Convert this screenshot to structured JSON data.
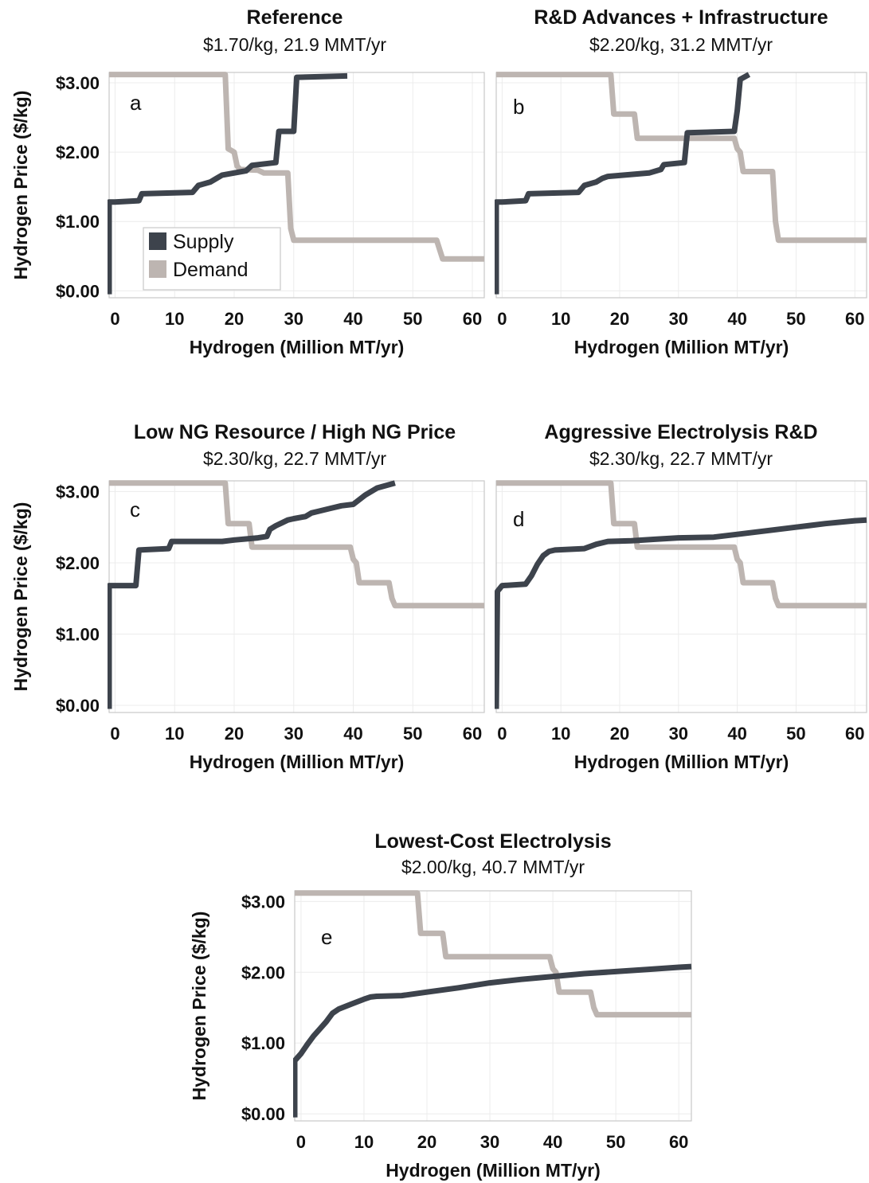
{
  "colors": {
    "supply": "#3d434c",
    "demand": "#bdb5b1",
    "grid": "#ececec",
    "frame": "#c9c9c9"
  },
  "legend": {
    "supply_label": "Supply",
    "demand_label": "Demand"
  },
  "chart_data": [
    {
      "type": "line",
      "panel": "a",
      "title": "Reference",
      "subtitle": "$1.70/kg,  21.9 MMT/yr",
      "xlabel": "Hydrogen (Million MT/yr)",
      "ylabel": "Hydrogen Price ($/kg)",
      "xlim": [
        -1,
        62
      ],
      "ylim": [
        -0.1,
        3.15
      ],
      "xticks": [
        0,
        10,
        20,
        30,
        40,
        50,
        60
      ],
      "xtick_labels": [
        "0",
        "10",
        "20",
        "30",
        "40",
        "50",
        "60"
      ],
      "yticks": [
        0,
        1,
        2,
        3
      ],
      "ytick_labels": [
        "$0.00",
        "$1.00",
        "$2.00",
        "$3.00"
      ],
      "grid": true,
      "legend": "bottom-left",
      "series": [
        {
          "name": "Supply",
          "role": "supply",
          "x": [
            -1,
            -1,
            0,
            4,
            4.5,
            13,
            14,
            16,
            17,
            18,
            22,
            23,
            27,
            27.5,
            30,
            30.5,
            39
          ],
          "y": [
            -0.05,
            1.28,
            1.28,
            1.3,
            1.4,
            1.42,
            1.52,
            1.57,
            1.62,
            1.67,
            1.73,
            1.81,
            1.85,
            2.3,
            2.3,
            3.08,
            3.1
          ]
        },
        {
          "name": "Demand",
          "role": "demand",
          "x": [
            -1,
            18.5,
            19,
            20,
            20.5,
            21,
            24,
            25,
            29,
            29.5,
            30,
            54,
            55,
            62
          ],
          "y": [
            3.12,
            3.12,
            2.05,
            2.0,
            1.8,
            1.75,
            1.74,
            1.7,
            1.7,
            0.9,
            0.73,
            0.73,
            0.46,
            0.46
          ]
        }
      ]
    },
    {
      "type": "line",
      "panel": "b",
      "title": "R&D Advances + Infrastructure",
      "subtitle": "$2.20/kg,  31.2 MMT/yr",
      "xlabel": "Hydrogen (Million MT/yr)",
      "ylabel": "",
      "xlim": [
        -1,
        62
      ],
      "ylim": [
        -0.1,
        3.15
      ],
      "xticks": [
        0,
        10,
        20,
        30,
        40,
        50,
        60
      ],
      "xtick_labels": [
        "0",
        "10",
        "20",
        "30",
        "40",
        "50",
        "60"
      ],
      "yticks": [
        0,
        1,
        2,
        3
      ],
      "ytick_labels": [],
      "grid": true,
      "series": [
        {
          "name": "Supply",
          "role": "supply",
          "x": [
            -1,
            -1,
            0,
            4,
            4.5,
            13,
            14,
            16,
            17,
            18,
            25,
            27,
            27.5,
            31,
            31.5,
            39.5,
            40,
            40.5,
            42
          ],
          "y": [
            -0.05,
            1.28,
            1.28,
            1.3,
            1.4,
            1.42,
            1.52,
            1.57,
            1.62,
            1.65,
            1.7,
            1.75,
            1.82,
            1.85,
            2.28,
            2.3,
            2.6,
            3.05,
            3.12
          ]
        },
        {
          "name": "Demand",
          "role": "demand",
          "x": [
            -1,
            18.5,
            19,
            22.5,
            23,
            39.5,
            40,
            40.5,
            41,
            46,
            46.5,
            47,
            62
          ],
          "y": [
            3.12,
            3.12,
            2.55,
            2.55,
            2.2,
            2.2,
            2.05,
            2.0,
            1.72,
            1.72,
            1.0,
            0.73,
            0.73
          ]
        }
      ]
    },
    {
      "type": "line",
      "panel": "c",
      "title": "Low NG Resource / High NG Price",
      "subtitle": "$2.30/kg,  22.7 MMT/yr",
      "xlabel": "Hydrogen (Million MT/yr)",
      "ylabel": "Hydrogen Price ($/kg)",
      "xlim": [
        -1,
        62
      ],
      "ylim": [
        -0.1,
        3.15
      ],
      "xticks": [
        0,
        10,
        20,
        30,
        40,
        50,
        60
      ],
      "xtick_labels": [
        "0",
        "10",
        "20",
        "30",
        "40",
        "50",
        "60"
      ],
      "yticks": [
        0,
        1,
        2,
        3
      ],
      "ytick_labels": [
        "$0.00",
        "$1.00",
        "$2.00",
        "$3.00"
      ],
      "grid": true,
      "series": [
        {
          "name": "Supply",
          "role": "supply",
          "x": [
            -1,
            -1,
            3.5,
            4,
            9,
            9.5,
            18,
            20,
            24,
            25.5,
            26,
            27,
            28,
            29,
            30,
            32,
            33,
            34,
            36,
            38,
            40,
            42,
            44,
            47
          ],
          "y": [
            -0.05,
            1.68,
            1.68,
            2.18,
            2.2,
            2.3,
            2.3,
            2.32,
            2.35,
            2.37,
            2.47,
            2.52,
            2.56,
            2.6,
            2.62,
            2.65,
            2.7,
            2.72,
            2.76,
            2.8,
            2.82,
            2.95,
            3.05,
            3.12
          ]
        },
        {
          "name": "Demand",
          "role": "demand",
          "x": [
            -1,
            18.5,
            19,
            22.5,
            23,
            39.5,
            40,
            40.5,
            41,
            46,
            46.5,
            47,
            62
          ],
          "y": [
            3.12,
            3.12,
            2.55,
            2.55,
            2.22,
            2.22,
            2.05,
            2.0,
            1.72,
            1.72,
            1.5,
            1.4,
            1.4
          ]
        }
      ]
    },
    {
      "type": "line",
      "panel": "d",
      "title": "Aggressive Electrolysis R&D",
      "subtitle": "$2.30/kg,  22.7 MMT/yr",
      "xlabel": "Hydrogen (Million MT/yr)",
      "ylabel": "",
      "xlim": [
        -1,
        62
      ],
      "ylim": [
        -0.1,
        3.15
      ],
      "xticks": [
        0,
        10,
        20,
        30,
        40,
        50,
        60
      ],
      "xtick_labels": [
        "0",
        "10",
        "20",
        "30",
        "40",
        "50",
        "60"
      ],
      "yticks": [
        0,
        1,
        2,
        3
      ],
      "ytick_labels": [],
      "grid": true,
      "series": [
        {
          "name": "Supply",
          "role": "supply",
          "x": [
            -1,
            -0.8,
            0,
            4,
            5,
            6,
            7,
            8,
            9,
            14,
            16,
            18,
            22,
            26,
            30,
            36,
            40,
            45,
            50,
            55,
            60,
            62
          ],
          "y": [
            -0.05,
            1.6,
            1.68,
            1.7,
            1.82,
            1.98,
            2.1,
            2.16,
            2.18,
            2.2,
            2.26,
            2.3,
            2.31,
            2.33,
            2.35,
            2.36,
            2.4,
            2.45,
            2.5,
            2.55,
            2.59,
            2.6
          ]
        },
        {
          "name": "Demand",
          "role": "demand",
          "x": [
            -1,
            18.5,
            19,
            22.5,
            23,
            39.5,
            40,
            40.5,
            41,
            46,
            46.5,
            47,
            62
          ],
          "y": [
            3.12,
            3.12,
            2.55,
            2.55,
            2.22,
            2.22,
            2.05,
            2.0,
            1.72,
            1.72,
            1.5,
            1.4,
            1.4
          ]
        }
      ]
    },
    {
      "type": "line",
      "panel": "e",
      "title": "Lowest-Cost Electrolysis",
      "subtitle": "$2.00/kg,  40.7 MMT/yr",
      "xlabel": "Hydrogen (Million MT/yr)",
      "ylabel": "Hydrogen Price ($/kg)",
      "xlim": [
        -1,
        62
      ],
      "ylim": [
        -0.1,
        3.15
      ],
      "xticks": [
        0,
        10,
        20,
        30,
        40,
        50,
        60
      ],
      "xtick_labels": [
        "0",
        "10",
        "20",
        "30",
        "40",
        "50",
        "60"
      ],
      "yticks": [
        0,
        1,
        2,
        3
      ],
      "ytick_labels": [
        "$0.00",
        "$1.00",
        "$2.00",
        "$3.00"
      ],
      "grid": true,
      "series": [
        {
          "name": "Supply",
          "role": "supply",
          "x": [
            -1,
            -1,
            0,
            1,
            2,
            3,
            4,
            5,
            6,
            8,
            10,
            11,
            12,
            16,
            20,
            25,
            30,
            35,
            40,
            45,
            50,
            55,
            60,
            62
          ],
          "y": [
            -0.05,
            0.75,
            0.85,
            0.98,
            1.1,
            1.2,
            1.3,
            1.42,
            1.48,
            1.55,
            1.62,
            1.65,
            1.66,
            1.67,
            1.72,
            1.78,
            1.85,
            1.9,
            1.94,
            1.98,
            2.01,
            2.04,
            2.07,
            2.08
          ]
        },
        {
          "name": "Demand",
          "role": "demand",
          "x": [
            -1,
            18.5,
            19,
            22.5,
            23,
            39.5,
            40,
            40.5,
            41,
            46,
            46.5,
            47,
            62
          ],
          "y": [
            3.12,
            3.12,
            2.55,
            2.55,
            2.22,
            2.22,
            2.05,
            2.0,
            1.72,
            1.72,
            1.5,
            1.4,
            1.4
          ]
        }
      ]
    }
  ]
}
